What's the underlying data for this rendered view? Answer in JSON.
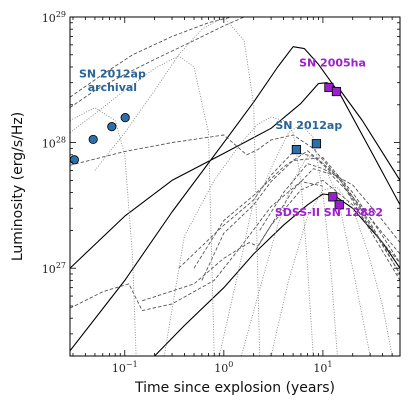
{
  "chart_data": {
    "type": "scatter",
    "xlabel": "Time since explosion (years)",
    "ylabel": "Luminosity (erg/s/Hz)",
    "xscale": "log",
    "yscale": "log",
    "xlim": [
      0.028,
      60
    ],
    "ylim": [
      2e+26,
      1e+29
    ],
    "x_ticks": [
      {
        "value": 0.1,
        "base": "10",
        "exp": "−1"
      },
      {
        "value": 1,
        "base": "10",
        "exp": "0"
      },
      {
        "value": 10,
        "base": "10",
        "exp": "1"
      }
    ],
    "y_ticks": [
      {
        "value": 1e+27,
        "base": "10",
        "exp": "27"
      },
      {
        "value": 1e+28,
        "base": "10",
        "exp": "28"
      },
      {
        "value": 1e+29,
        "base": "10",
        "exp": "29"
      }
    ],
    "grid": false,
    "colors": {
      "blue": "#2f6fa6",
      "blue_text": "#2a6496",
      "purple": "#9b1fcf",
      "purple_text": "#a020d0",
      "model_solid": "#000000",
      "model_dashed": "#555555",
      "model_dotted": "#8a8a8a"
    },
    "series": [
      {
        "name": "SN 2012ap archival",
        "label_lines": [
          "SN 2012ap",
          "archival"
        ],
        "marker": "circle",
        "color": "#2f6fa6",
        "x": [
          0.031,
          0.048,
          0.074,
          0.101
        ],
        "y": [
          7.3e+27,
          1.06e+28,
          1.34e+28,
          1.58e+28
        ]
      },
      {
        "name": "SN 2012ap",
        "label_lines": [
          "SN 2012ap"
        ],
        "marker": "square",
        "color": "#2f6fa6",
        "x": [
          5.4,
          8.6
        ],
        "y": [
          8.8e+27,
          9.8e+27
        ]
      },
      {
        "name": "SN 2005ha",
        "label_lines": [
          "SN 2005ha"
        ],
        "marker": "square",
        "color": "#9b1fcf",
        "x": [
          11.5,
          13.7
        ],
        "y": [
          2.75e+28,
          2.55e+28
        ]
      },
      {
        "name": "SDSS-II SN 12882",
        "label_lines": [
          "SDSS-II SN 12882"
        ],
        "marker": "square",
        "color": "#9b1fcf",
        "x": [
          12.6,
          14.6
        ],
        "y": [
          3.7e+27,
          3.2e+27
        ]
      }
    ],
    "model_curves": [
      {
        "style": "solid",
        "x": [
          0.028,
          0.1,
          0.3,
          1,
          2,
          3.5,
          5,
          6.5,
          9,
          15,
          30,
          60
        ],
        "y": [
          2.2e+26,
          8e+26,
          2.8e+27,
          1e+28,
          2.1e+28,
          4e+28,
          5.8e+28,
          5.6e+28,
          4.2e+28,
          2.4e+28,
          8.8e+27,
          3.2e+27
        ]
      },
      {
        "style": "solid",
        "x": [
          0.028,
          0.1,
          0.3,
          1,
          3,
          6,
          9,
          11,
          15,
          25,
          60
        ],
        "y": [
          1e+27,
          2.6e+27,
          5e+27,
          8.2e+27,
          1.3e+28,
          2.05e+28,
          2.95e+28,
          3e+28,
          2.6e+28,
          1.5e+28,
          5e+27
        ]
      },
      {
        "style": "solid",
        "x": [
          0.2,
          0.4,
          1,
          2,
          4,
          7,
          10,
          13,
          20,
          40,
          60
        ],
        "y": [
          2e+26,
          3.5e+26,
          7e+26,
          1.3e+27,
          2.2e+27,
          3.2e+27,
          3.9e+27,
          3.8e+27,
          3e+27,
          1.6e+27,
          1e+27
        ]
      },
      {
        "style": "dashed",
        "x": [
          0.028,
          0.05,
          0.1,
          0.2,
          0.5,
          1,
          1.6
        ],
        "y": [
          1.9e+28,
          2.6e+28,
          3.5e+28,
          4.6e+28,
          6.5e+28,
          8.5e+28,
          1e+29
        ]
      },
      {
        "style": "dashed",
        "x": [
          0.028,
          0.06,
          0.12,
          0.3,
          0.7,
          1.2
        ],
        "y": [
          2.3e+28,
          3.5e+28,
          5e+28,
          7e+28,
          9e+28,
          1e+29
        ]
      },
      {
        "style": "dashed",
        "x": [
          0.028,
          0.1,
          0.3,
          1,
          1.7,
          2.2,
          3,
          5,
          8,
          15,
          30,
          60
        ],
        "y": [
          6.6e+27,
          8.5e+27,
          1e+28,
          1.15e+28,
          8e+27,
          8.8e+27,
          1.05e+28,
          1.15e+28,
          9e+27,
          5e+27,
          2e+27,
          8e+26
        ]
      },
      {
        "style": "dashed",
        "x": [
          0.35,
          1,
          2,
          3,
          5,
          8,
          15,
          30,
          60
        ],
        "y": [
          1e+27,
          2.2e+27,
          3.5e+27,
          5.5e+27,
          8.4e+27,
          7.8e+27,
          5e+27,
          2.2e+27,
          9e+26
        ]
      },
      {
        "style": "dashed",
        "x": [
          0.5,
          1,
          2,
          4,
          7,
          15,
          30,
          60
        ],
        "y": [
          1e+27,
          2.4e+27,
          3.8e+27,
          6.4e+27,
          8.6e+27,
          5.2e+27,
          2.3e+27,
          9e+26
        ]
      },
      {
        "style": "dashed",
        "x": [
          0.6,
          1,
          2,
          3,
          5,
          10,
          20,
          40,
          60
        ],
        "y": [
          8e+26,
          1.9e+27,
          3.2e+27,
          4.9e+27,
          7.2e+27,
          7.6e+27,
          4e+27,
          1.8e+27,
          1.1e+27
        ]
      },
      {
        "style": "dashed",
        "x": [
          0.028,
          0.06,
          0.11,
          0.15,
          0.3,
          0.8,
          1.5,
          3,
          6,
          10
        ],
        "y": [
          4.8e+26,
          6.5e+26,
          7.5e+26,
          4.6e+26,
          5.2e+26,
          8e+26,
          1.5e+27,
          3.1e+27,
          4.9e+27,
          4.5e+27
        ]
      },
      {
        "style": "dashed",
        "x": [
          0.15,
          0.5,
          1,
          1.8,
          2.2,
          3,
          6,
          10,
          20,
          40,
          60
        ],
        "y": [
          5.5e+26,
          7.5e+26,
          1.2e+27,
          1.6e+27,
          1.5e+27,
          2.2e+27,
          4.2e+27,
          5e+27,
          3.2e+27,
          1.6e+27,
          1.1e+27
        ]
      },
      {
        "style": "dashed",
        "x": [
          2.1,
          3,
          5,
          8,
          12,
          20,
          40,
          60
        ],
        "y": [
          1.4e+27,
          2.2e+27,
          4.2e+27,
          6.2e+27,
          5.6e+27,
          3.7e+27,
          1.9e+27,
          1.3e+27
        ]
      },
      {
        "style": "dashed",
        "x": [
          2.3,
          4,
          7,
          10,
          20,
          40,
          60
        ],
        "y": [
          2e+27,
          4e+27,
          6.8e+27,
          6.2e+27,
          4.6e+27,
          2.4e+27,
          1.6e+27
        ]
      },
      {
        "style": "dotted",
        "x": [
          0.028,
          0.05,
          0.1,
          0.2,
          0.35,
          0.5,
          0.7,
          0.8
        ],
        "y": [
          1.2e+28,
          1.7e+28,
          2.6e+28,
          3.9e+28,
          4.9e+28,
          4e+28,
          1.2e+28,
          2e+26
        ]
      },
      {
        "style": "dotted",
        "x": [
          0.028,
          0.05,
          0.08,
          0.1,
          0.12,
          0.13
        ],
        "y": [
          1.5e+28,
          1.9e+28,
          1.5e+28,
          8e+27,
          1.2e+27,
          2e+26
        ]
      },
      {
        "style": "dotted",
        "x": [
          0.05,
          0.1,
          0.2,
          0.35,
          0.6,
          1,
          1.6,
          2,
          2.3
        ],
        "y": [
          6e+27,
          1.2e+28,
          2.6e+28,
          5e+28,
          8e+28,
          1e+29,
          6.5e+28,
          2e+28,
          2e+26
        ]
      },
      {
        "style": "dotted",
        "x": [
          0.25,
          0.4,
          0.8,
          1.5,
          2.2,
          3,
          4,
          5,
          6,
          7,
          8
        ],
        "y": [
          2e+26,
          1.8e+27,
          5e+27,
          1e+28,
          1.4e+28,
          1.6e+28,
          1.5e+28,
          1.2e+28,
          5e+27,
          1e+27,
          2e+26
        ]
      },
      {
        "style": "dotted",
        "x": [
          0.9,
          1.5,
          2,
          2.6,
          3.2,
          4.5,
          6,
          8,
          10,
          12,
          14
        ],
        "y": [
          2e+26,
          1.2e+27,
          3.5e+27,
          4.8e+27,
          7e+27,
          1.2e+28,
          1.4e+28,
          1.1e+28,
          4e+27,
          1e+27,
          2e+26
        ]
      },
      {
        "style": "dotted",
        "x": [
          1.5,
          2.2,
          3.5,
          5,
          7,
          10,
          14,
          20,
          30
        ],
        "y": [
          2e+26,
          6e+26,
          2.2e+27,
          5e+27,
          7.8e+27,
          7e+27,
          3.8e+27,
          1e+27,
          2e+26
        ]
      },
      {
        "style": "dotted",
        "x": [
          3,
          4.5,
          7,
          10,
          14,
          20,
          28,
          40,
          50
        ],
        "y": [
          2e+26,
          8e+26,
          2.6e+27,
          4.2e+27,
          4.4e+27,
          3e+27,
          1.4e+27,
          5e+26,
          2e+26
        ]
      }
    ],
    "annotations": [
      {
        "lines": [
          "SN 2012ap",
          "archival"
        ],
        "color": "#2a6496",
        "x": 0.075,
        "y": 3.3e+28,
        "line_gap": 1.28
      },
      {
        "lines": [
          "SN 2012ap"
        ],
        "color": "#2a6496",
        "x": 7.2,
        "y": 1.28e+28
      },
      {
        "lines": [
          "SN 2005ha"
        ],
        "color": "#a020d0",
        "x": 12.5,
        "y": 4.05e+28
      },
      {
        "lines": [
          "SDSS-II SN 12882"
        ],
        "color": "#a020d0",
        "x": 11.5,
        "y": 2.6e+27
      }
    ]
  }
}
